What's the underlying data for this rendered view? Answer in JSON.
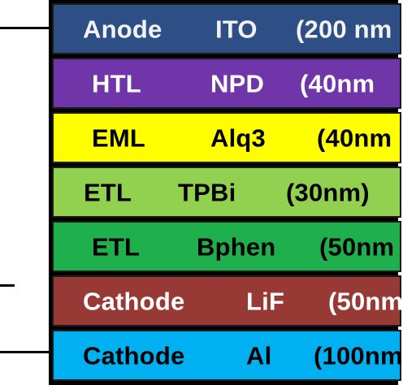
{
  "layers": [
    {
      "role": "Anode",
      "material": "ITO",
      "thickness": "(200 nm",
      "fill": "#2e4f86",
      "text_color": "#f2f2f2"
    },
    {
      "role": "HTL",
      "material": "NPD",
      "thickness": "(40nm",
      "fill": "#7035a8",
      "text_color": "#ffffff"
    },
    {
      "role": "EML",
      "material": "Alq3",
      "thickness": "(40nm",
      "fill": "#ffff00",
      "text_color": "#000000"
    },
    {
      "role": "ETL",
      "material": "TPBi",
      "thickness": "(30nm)",
      "fill": "#92d050",
      "text_color": "#000000"
    },
    {
      "role": "ETL",
      "material": "Bphen",
      "thickness": "(50nm",
      "fill": "#1fb04d",
      "text_color": "#000000"
    },
    {
      "role": "Cathode",
      "material": "LiF",
      "thickness": "(50nm",
      "fill": "#973a36",
      "text_color": "#ffffff"
    },
    {
      "role": "Cathode",
      "material": "Al",
      "thickness": "(100nm",
      "fill": "#00b0f0",
      "text_color": "#000000"
    }
  ]
}
